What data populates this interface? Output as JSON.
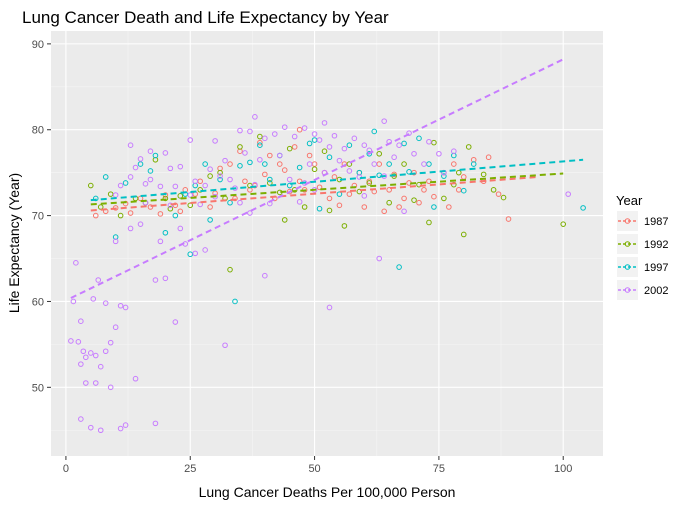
{
  "chart_data": {
    "type": "scatter",
    "title": "Lung Cancer Death and Life Expectancy by Year",
    "xlabel": "Lung Cancer Deaths Per 100,000 Person",
    "ylabel": "Life Expectancy (Year)",
    "xlim": [
      -3,
      108
    ],
    "ylim": [
      42,
      91.5
    ],
    "x_ticks": [
      0,
      25,
      50,
      75,
      100
    ],
    "y_ticks": [
      50,
      60,
      70,
      80,
      90
    ],
    "grid": true,
    "legend": {
      "title": "Year",
      "placement": "right"
    },
    "series": [
      {
        "name": "1987",
        "color": "#F8766D",
        "trend": [
          [
            5,
            70.6
          ],
          [
            95,
            74.5
          ]
        ],
        "points": [
          [
            6,
            70
          ],
          [
            8,
            70.5
          ],
          [
            10,
            70.9
          ],
          [
            12,
            71.4
          ],
          [
            13,
            70.3
          ],
          [
            15,
            72
          ],
          [
            17,
            71
          ],
          [
            19,
            70.2
          ],
          [
            20,
            72.4
          ],
          [
            22,
            71.2
          ],
          [
            23,
            70.5
          ],
          [
            24,
            73
          ],
          [
            26,
            72.5
          ],
          [
            27,
            74
          ],
          [
            29,
            71
          ],
          [
            30,
            72.6
          ],
          [
            31,
            75.5
          ],
          [
            33,
            76
          ],
          [
            34,
            72
          ],
          [
            35,
            77.5
          ],
          [
            36,
            74
          ],
          [
            37,
            73
          ],
          [
            38,
            73.5
          ],
          [
            39,
            78.5
          ],
          [
            40,
            74.8
          ],
          [
            41,
            77
          ],
          [
            42,
            72
          ],
          [
            43,
            76
          ],
          [
            44,
            75.3
          ],
          [
            45,
            72.8
          ],
          [
            46,
            78
          ],
          [
            47,
            74
          ],
          [
            48,
            73
          ],
          [
            49,
            77
          ],
          [
            50,
            76
          ],
          [
            51,
            73.3
          ],
          [
            52,
            75
          ],
          [
            53,
            72
          ],
          [
            54,
            74.5
          ],
          [
            55,
            71.2
          ],
          [
            56,
            76
          ],
          [
            57,
            72.5
          ],
          [
            58,
            73.5
          ],
          [
            59,
            75
          ],
          [
            60,
            71
          ],
          [
            61,
            74
          ],
          [
            62,
            72.8
          ],
          [
            63,
            76
          ],
          [
            64,
            70.5
          ],
          [
            65,
            73
          ],
          [
            66,
            74.8
          ],
          [
            67,
            71
          ],
          [
            68,
            72
          ],
          [
            69,
            73.8
          ],
          [
            70,
            75
          ],
          [
            71,
            71.5
          ],
          [
            72,
            73
          ],
          [
            73,
            74
          ],
          [
            74,
            72.2
          ],
          [
            76,
            75
          ],
          [
            77,
            71
          ],
          [
            78,
            76
          ],
          [
            79,
            73
          ],
          [
            80,
            74.5
          ],
          [
            82,
            76.5
          ],
          [
            84,
            74
          ],
          [
            85,
            76.8
          ],
          [
            87,
            72.5
          ],
          [
            89,
            69.6
          ],
          [
            47,
            80
          ]
        ]
      },
      {
        "name": "1992",
        "color": "#7CAE00",
        "trend": [
          [
            5,
            71.3
          ],
          [
            100,
            74.9
          ]
        ],
        "points": [
          [
            5,
            73.5
          ],
          [
            7,
            71
          ],
          [
            9,
            72.5
          ],
          [
            11,
            70
          ],
          [
            14,
            72
          ],
          [
            16,
            71.5
          ],
          [
            18,
            76.5
          ],
          [
            20,
            72
          ],
          [
            21,
            70.8
          ],
          [
            23,
            72.3
          ],
          [
            25,
            71.2
          ],
          [
            27,
            73
          ],
          [
            29,
            74.6
          ],
          [
            31,
            75
          ],
          [
            32,
            72
          ],
          [
            33,
            63.7
          ],
          [
            35,
            78
          ],
          [
            37,
            73.5
          ],
          [
            39,
            79.2
          ],
          [
            41,
            73.8
          ],
          [
            43,
            72.7
          ],
          [
            45,
            77.8
          ],
          [
            46,
            73
          ],
          [
            48,
            71
          ],
          [
            50,
            75.4
          ],
          [
            52,
            77.5
          ],
          [
            53,
            70.6
          ],
          [
            55,
            74.2
          ],
          [
            57,
            76
          ],
          [
            59,
            72.8
          ],
          [
            61,
            73.8
          ],
          [
            63,
            77.2
          ],
          [
            65,
            71.5
          ],
          [
            66,
            74.6
          ],
          [
            68,
            76
          ],
          [
            70,
            71.8
          ],
          [
            71,
            73.6
          ],
          [
            73,
            69.2
          ],
          [
            74,
            78.5
          ],
          [
            76,
            72
          ],
          [
            78,
            73.6
          ],
          [
            79,
            75
          ],
          [
            80,
            67.8
          ],
          [
            81,
            78
          ],
          [
            84,
            74.8
          ],
          [
            86,
            73
          ],
          [
            88,
            72.1
          ],
          [
            100,
            69
          ],
          [
            44,
            69.5
          ],
          [
            56,
            68.8
          ]
        ]
      },
      {
        "name": "1997",
        "color": "#00BFC4",
        "trend": [
          [
            5,
            71.8
          ],
          [
            104,
            76.5
          ]
        ],
        "points": [
          [
            6,
            72
          ],
          [
            8,
            74.5
          ],
          [
            10,
            67.5
          ],
          [
            12,
            73.8
          ],
          [
            15,
            76
          ],
          [
            17,
            75.2
          ],
          [
            18,
            77
          ],
          [
            20,
            68
          ],
          [
            22,
            70
          ],
          [
            24,
            72.5
          ],
          [
            26,
            73.5
          ],
          [
            28,
            76
          ],
          [
            29,
            69.5
          ],
          [
            31,
            74.2
          ],
          [
            33,
            71.5
          ],
          [
            34,
            60
          ],
          [
            35,
            75.8
          ],
          [
            37,
            76.2
          ],
          [
            39,
            78.2
          ],
          [
            41,
            74.2
          ],
          [
            43,
            77
          ],
          [
            45,
            73.5
          ],
          [
            47,
            75.6
          ],
          [
            49,
            78.4
          ],
          [
            50,
            78.8
          ],
          [
            51,
            70.8
          ],
          [
            53,
            76.8
          ],
          [
            55,
            72.5
          ],
          [
            57,
            78.2
          ],
          [
            59,
            75
          ],
          [
            61,
            77.2
          ],
          [
            62,
            79.8
          ],
          [
            63,
            74.7
          ],
          [
            65,
            76
          ],
          [
            67,
            64
          ],
          [
            68,
            78.4
          ],
          [
            69,
            75.1
          ],
          [
            71,
            79
          ],
          [
            73,
            76
          ],
          [
            74,
            71
          ],
          [
            76,
            74.6
          ],
          [
            78,
            77
          ],
          [
            80,
            72.9
          ],
          [
            82,
            76
          ],
          [
            104,
            70.9
          ],
          [
            25,
            65.5
          ],
          [
            40,
            76
          ]
        ]
      },
      {
        "name": "2002",
        "color": "#C77CFF",
        "trend": [
          [
            1,
            60.4
          ],
          [
            100,
            88.2
          ]
        ],
        "points": [
          [
            1,
            55.4
          ],
          [
            1.5,
            60
          ],
          [
            2,
            64.5
          ],
          [
            2.5,
            55.3
          ],
          [
            3,
            57.7
          ],
          [
            3,
            52.7
          ],
          [
            3,
            46.3
          ],
          [
            3.5,
            54.2
          ],
          [
            4,
            50.5
          ],
          [
            4,
            53.5
          ],
          [
            5,
            54
          ],
          [
            5,
            45.3
          ],
          [
            5.5,
            60.3
          ],
          [
            6,
            50.5
          ],
          [
            6,
            53.7
          ],
          [
            6.5,
            62.5
          ],
          [
            7,
            45
          ],
          [
            7,
            52.4
          ],
          [
            8,
            59.8
          ],
          [
            8,
            54.2
          ],
          [
            9,
            50
          ],
          [
            9,
            55.2
          ],
          [
            10,
            67
          ],
          [
            10,
            57
          ],
          [
            10,
            72.4
          ],
          [
            11,
            45.2
          ],
          [
            11,
            59.5
          ],
          [
            11,
            73.5
          ],
          [
            12,
            59.3
          ],
          [
            12,
            45.6
          ],
          [
            13,
            78.2
          ],
          [
            13,
            74.5
          ],
          [
            13,
            68.5
          ],
          [
            14,
            51
          ],
          [
            14,
            75.6
          ],
          [
            15,
            76.6
          ],
          [
            15,
            69
          ],
          [
            16,
            71.5
          ],
          [
            16,
            73.7
          ],
          [
            17,
            77.5
          ],
          [
            17,
            74.2
          ],
          [
            18,
            45.8
          ],
          [
            18,
            62.5
          ],
          [
            19,
            73.4
          ],
          [
            19,
            67
          ],
          [
            20,
            77.3
          ],
          [
            20,
            62.7
          ],
          [
            21,
            71.2
          ],
          [
            21,
            75.5
          ],
          [
            22,
            73.4
          ],
          [
            22,
            57.6
          ],
          [
            23,
            68.5
          ],
          [
            23,
            75.7
          ],
          [
            24,
            66.7
          ],
          [
            25,
            72.4
          ],
          [
            25,
            78.8
          ],
          [
            26,
            74
          ],
          [
            26,
            65.6
          ],
          [
            27,
            71.3
          ],
          [
            28,
            73.5
          ],
          [
            28,
            66
          ],
          [
            29,
            75.4
          ],
          [
            30,
            78.7
          ],
          [
            30,
            72.2
          ],
          [
            31,
            74.6
          ],
          [
            32,
            54.9
          ],
          [
            32,
            76.4
          ],
          [
            33,
            74.2
          ],
          [
            34,
            73.2
          ],
          [
            35,
            79.9
          ],
          [
            35,
            71.5
          ],
          [
            36,
            77.3
          ],
          [
            37,
            70.3
          ],
          [
            37,
            79.8
          ],
          [
            38,
            81.5
          ],
          [
            38,
            73.6
          ],
          [
            39,
            76.5
          ],
          [
            40,
            63
          ],
          [
            40,
            79
          ],
          [
            41,
            71.4
          ],
          [
            42,
            79.5
          ],
          [
            43,
            77
          ],
          [
            44,
            80.3
          ],
          [
            45,
            74.2
          ],
          [
            46,
            79.2
          ],
          [
            47,
            71.6
          ],
          [
            48,
            80.2
          ],
          [
            48,
            73.8
          ],
          [
            49,
            76
          ],
          [
            50,
            79.5
          ],
          [
            50,
            73
          ],
          [
            51,
            78.8
          ],
          [
            52,
            80.8
          ],
          [
            52,
            75
          ],
          [
            53,
            59.3
          ],
          [
            53,
            78
          ],
          [
            54,
            79.3
          ],
          [
            55,
            76.4
          ],
          [
            56,
            77.8
          ],
          [
            57,
            75.2
          ],
          [
            58,
            79
          ],
          [
            59,
            74.5
          ],
          [
            60,
            78.2
          ],
          [
            60,
            72.3
          ],
          [
            61,
            77.6
          ],
          [
            62,
            76
          ],
          [
            63,
            65
          ],
          [
            64,
            81
          ],
          [
            64,
            74.6
          ],
          [
            65,
            78.6
          ],
          [
            66,
            76.8
          ],
          [
            67,
            78.2
          ],
          [
            68,
            70.5
          ],
          [
            69,
            79.6
          ],
          [
            70,
            77.2
          ],
          [
            72,
            76
          ],
          [
            73,
            78.6
          ],
          [
            75,
            77.2
          ],
          [
            76,
            75
          ],
          [
            78,
            77.5
          ],
          [
            101,
            72.5
          ]
        ]
      }
    ]
  }
}
